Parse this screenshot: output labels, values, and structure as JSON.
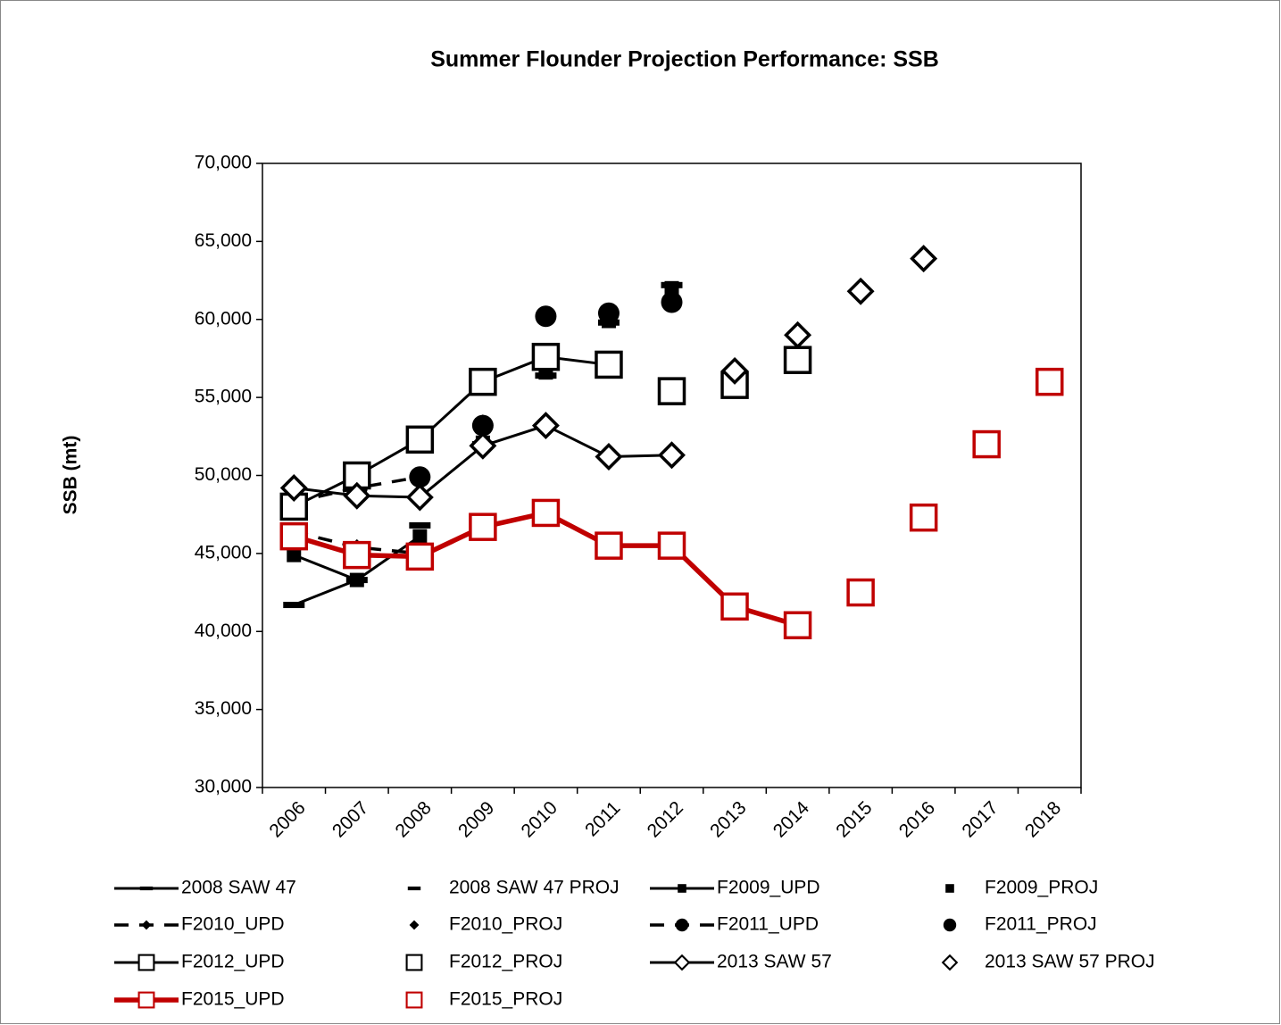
{
  "chart_data": {
    "type": "line",
    "title": "Summer Flounder Projection Performance: SSB",
    "y_label": "SSB (mt)",
    "categories": [
      "2006",
      "2007",
      "2008",
      "2009",
      "2010",
      "2011",
      "2012",
      "2013",
      "2014",
      "2015",
      "2016",
      "2017",
      "2018"
    ],
    "ylim": [
      30000,
      70000
    ],
    "yticks": [
      {
        "value": 30000,
        "label": "30,000"
      },
      {
        "value": 35000,
        "label": "35,000"
      },
      {
        "value": 40000,
        "label": "40,000"
      },
      {
        "value": 45000,
        "label": "45,000"
      },
      {
        "value": 50000,
        "label": "50,000"
      },
      {
        "value": 55000,
        "label": "55,000"
      },
      {
        "value": 60000,
        "label": "60,000"
      },
      {
        "value": 65000,
        "label": "65,000"
      },
      {
        "value": 70000,
        "label": "70,000"
      }
    ],
    "grid": false,
    "legend": "bottom",
    "series": [
      {
        "name": "2008 SAW 47",
        "color": "#000000",
        "line": "solid",
        "marker": "dash",
        "values": [
          41700,
          43300,
          null,
          null,
          null,
          null,
          null,
          null,
          null,
          null,
          null,
          null,
          null
        ]
      },
      {
        "name": "2008 SAW 47 PROJ",
        "color": "#000000",
        "line": "none",
        "marker": "dash",
        "values": [
          null,
          null,
          46800,
          52000,
          56400,
          59800,
          62200,
          null,
          null,
          null,
          null,
          null,
          null
        ]
      },
      {
        "name": "F2009_UPD",
        "color": "#000000",
        "line": "solid",
        "marker": "square",
        "values": [
          44900,
          43300,
          46100,
          null,
          null,
          null,
          null,
          null,
          null,
          null,
          null,
          null,
          null
        ]
      },
      {
        "name": "F2009_PROJ",
        "color": "#000000",
        "line": "none",
        "marker": "square",
        "values": [
          null,
          null,
          null,
          52100,
          56600,
          59900,
          62000,
          null,
          null,
          null,
          null,
          null,
          null
        ]
      },
      {
        "name": "F2010_UPD",
        "color": "#000000",
        "line": "dashed",
        "marker": "diamond",
        "values": [
          46400,
          45400,
          45000,
          null,
          null,
          null,
          null,
          null,
          null,
          null,
          null,
          null,
          null
        ]
      },
      {
        "name": "F2010_PROJ",
        "color": "#000000",
        "line": "none",
        "marker": "diamond",
        "values": [
          null,
          null,
          null,
          53400,
          null,
          null,
          null,
          null,
          null,
          null,
          null,
          null,
          null
        ]
      },
      {
        "name": "F2011_UPD",
        "color": "#000000",
        "line": "dashed",
        "marker": "circle",
        "values": [
          48300,
          49200,
          49900,
          null,
          null,
          null,
          null,
          null,
          null,
          null,
          null,
          null,
          null
        ]
      },
      {
        "name": "F2011_PROJ",
        "color": "#000000",
        "line": "none",
        "marker": "circle",
        "values": [
          null,
          null,
          null,
          53200,
          60200,
          60400,
          61100,
          null,
          null,
          null,
          null,
          null,
          null
        ]
      },
      {
        "name": "F2012_UPD",
        "color": "#000000",
        "line": "solid",
        "marker": "open-square",
        "values": [
          48000,
          50000,
          52300,
          56000,
          57600,
          57100,
          null,
          null,
          null,
          null,
          null,
          null,
          null
        ]
      },
      {
        "name": "F2012_PROJ",
        "color": "#000000",
        "line": "none",
        "marker": "open-square",
        "values": [
          null,
          null,
          null,
          null,
          null,
          null,
          55400,
          55800,
          57400,
          null,
          null,
          null,
          null
        ]
      },
      {
        "name": "2013 SAW 57",
        "color": "#000000",
        "line": "solid",
        "marker": "open-diamond",
        "values": [
          49200,
          48700,
          48600,
          51900,
          53200,
          51200,
          51300,
          null,
          null,
          null,
          null,
          null,
          null
        ]
      },
      {
        "name": "2013 SAW 57 PROJ",
        "color": "#000000",
        "line": "none",
        "marker": "open-diamond",
        "values": [
          null,
          null,
          null,
          null,
          null,
          null,
          null,
          56700,
          59000,
          61800,
          63900,
          null,
          null
        ]
      },
      {
        "name": "F2015_UPD",
        "color": "#c00000",
        "line": "thick",
        "marker": "open-square",
        "values": [
          46100,
          44900,
          44800,
          46700,
          47600,
          45500,
          45500,
          41600,
          40400,
          null,
          null,
          null,
          null
        ]
      },
      {
        "name": "F2015_PROJ",
        "color": "#c00000",
        "line": "none",
        "marker": "open-square",
        "values": [
          null,
          null,
          null,
          null,
          null,
          null,
          null,
          null,
          null,
          42500,
          47300,
          52000,
          56000
        ]
      }
    ]
  }
}
